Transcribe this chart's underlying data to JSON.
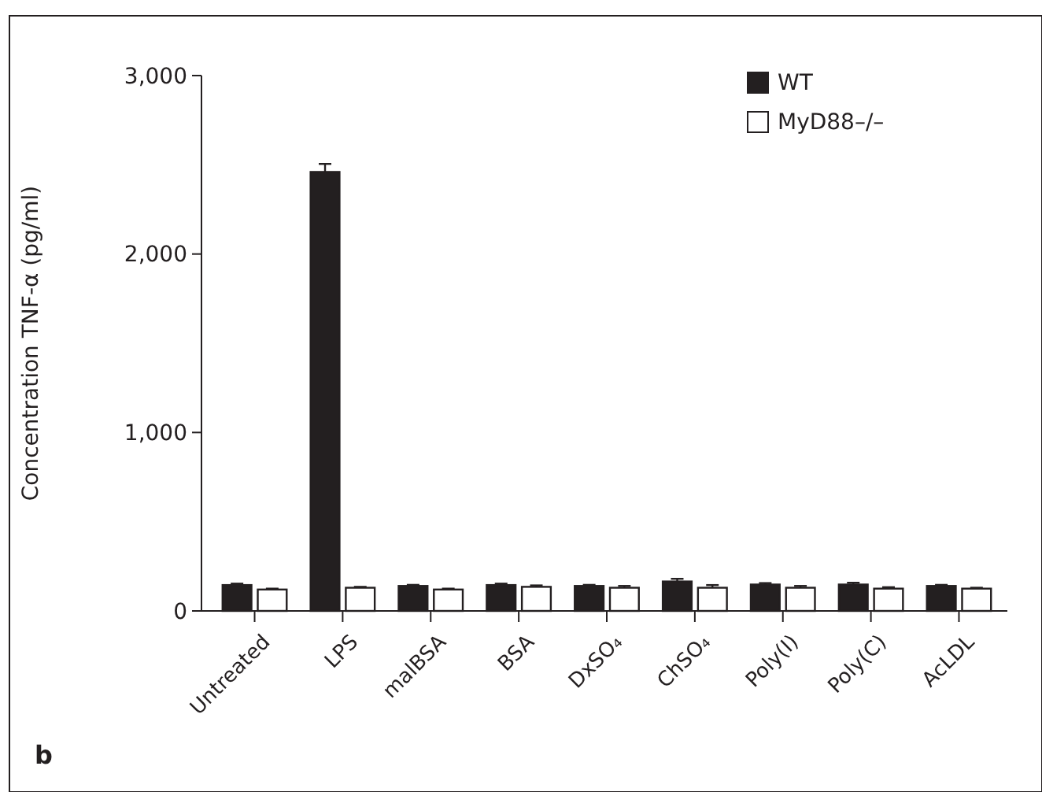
{
  "chart_data": {
    "type": "bar",
    "ylabel": "Concentration TNF-α (pg/ml)",
    "categories": [
      "Untreated",
      "LPS",
      "malBSA",
      "BSA",
      "DxSO₄",
      "ChSO₄",
      "Poly(I)",
      "Poly(C)",
      "AcLDL"
    ],
    "series": [
      {
        "name": "WT",
        "color": "#231f20",
        "values": [
          145,
          2460,
          140,
          145,
          140,
          165,
          148,
          148,
          140
        ],
        "errors": [
          8,
          45,
          6,
          8,
          6,
          15,
          8,
          10,
          6
        ]
      },
      {
        "name": "MyD88–/–",
        "color": "#ffffff",
        "values": [
          120,
          130,
          120,
          135,
          130,
          130,
          130,
          125,
          125
        ],
        "errors": [
          5,
          5,
          5,
          8,
          10,
          15,
          10,
          8,
          5
        ]
      }
    ],
    "ylim": [
      0,
      3000
    ],
    "yticks": [
      {
        "value": 0,
        "label": "0"
      },
      {
        "value": 1000,
        "label": "1,000"
      },
      {
        "value": 2000,
        "label": "2,000"
      },
      {
        "value": 3000,
        "label": "3,000"
      }
    ],
    "legend": "top right",
    "grid": false,
    "annotations": [
      "b"
    ]
  }
}
